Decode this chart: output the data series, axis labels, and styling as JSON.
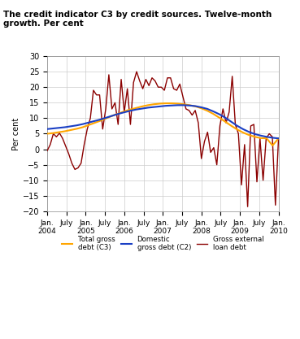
{
  "title": "The credit indicator C3 by credit sources. Twelve-month\ngrowth. Per cent",
  "ylabel": "Per cent",
  "ylim": [
    -20,
    30
  ],
  "yticks": [
    -20,
    -15,
    -10,
    -5,
    0,
    5,
    10,
    15,
    20,
    25,
    30
  ],
  "bg_color": "#ffffff",
  "grid_color": "#cccccc",
  "colors": {
    "total": "#FFA500",
    "domestic": "#1a3fc4",
    "external": "#8B0000"
  },
  "legend": [
    {
      "label": "Total gross\ndebt (C3)",
      "color": "#FFA500"
    },
    {
      "label": "Domestic\ngross debt (C2)",
      "color": "#1a3fc4"
    },
    {
      "label": "Gross external\nloan debt",
      "color": "#8B0000"
    }
  ],
  "x_tick_labels": [
    "Jan.\n2004",
    "July",
    "Jan.\n2005",
    "July",
    "Jan.\n2006",
    "July",
    "Jan.\n2007",
    "July",
    "Jan.\n2008",
    "July",
    "Jan.\n2009",
    "July",
    "Jan.\n2010"
  ],
  "total_gross_debt": [
    5.0,
    5.2,
    5.5,
    5.8,
    6.2,
    6.6,
    7.1,
    7.8,
    8.5,
    9.2,
    10.0,
    10.8,
    11.5,
    12.2,
    12.8,
    13.3,
    13.8,
    14.2,
    14.5,
    14.7,
    14.8,
    14.8,
    14.7,
    14.5,
    14.2,
    13.8,
    13.2,
    12.4,
    11.4,
    10.2,
    8.9,
    7.6,
    6.4,
    5.4,
    4.6,
    4.0,
    3.6,
    3.5,
    1.2,
    3.5
  ],
  "domestic_gross_debt": [
    6.5,
    6.7,
    6.9,
    7.1,
    7.4,
    7.7,
    8.1,
    8.6,
    9.1,
    9.6,
    10.2,
    10.8,
    11.4,
    11.9,
    12.4,
    12.8,
    13.1,
    13.4,
    13.6,
    13.8,
    14.0,
    14.1,
    14.2,
    14.2,
    14.1,
    13.9,
    13.5,
    13.0,
    12.2,
    11.3,
    10.2,
    8.9,
    7.6,
    6.5,
    5.6,
    4.9,
    4.4,
    4.0,
    3.7,
    3.5
  ],
  "gross_external_loan": [
    -0.5,
    1.5,
    5.0,
    4.0,
    5.2,
    3.5,
    1.0,
    -1.5,
    -4.5,
    -6.5,
    -6.0,
    -4.5,
    1.5,
    6.5,
    10.0,
    19.0,
    17.5,
    17.5,
    6.5,
    13.0,
    24.0,
    13.0,
    15.0,
    8.0,
    22.5,
    12.0,
    19.5,
    8.0,
    21.5,
    25.0,
    22.0,
    19.5,
    22.5,
    20.5,
    23.0,
    22.0,
    20.0,
    20.0,
    19.0,
    23.0,
    23.0,
    19.5,
    19.0,
    21.0,
    17.0,
    13.0,
    12.5,
    11.0,
    12.5,
    8.5,
    -3.0,
    2.5,
    5.5,
    -1.0,
    0.5,
    -5.0,
    7.5,
    13.0,
    8.5,
    12.0,
    23.5,
    8.0,
    5.0,
    -11.5,
    1.5,
    -18.5,
    7.5,
    8.0,
    -10.5,
    3.5,
    -10.0,
    3.5,
    5.0,
    4.0,
    -18.0,
    3.5
  ]
}
